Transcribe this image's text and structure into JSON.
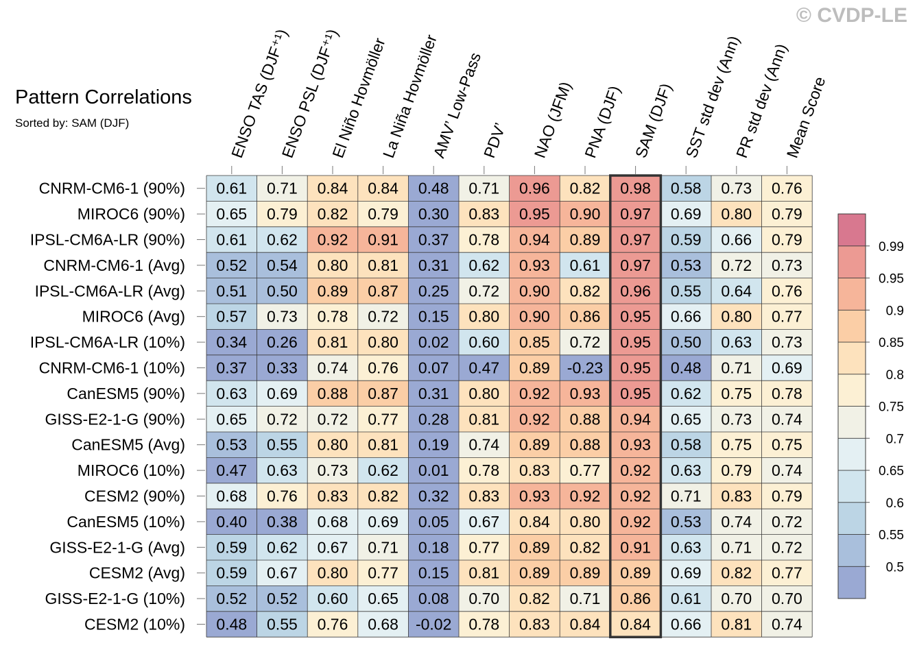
{
  "title": "Pattern Correlations",
  "subtitle": "Sorted by: SAM (DJF)",
  "watermark": "© CVDP-LE",
  "chart_data": {
    "type": "heatmap",
    "columns": [
      "ENSO TAS (DJF⁺¹)",
      "ENSO PSL (DJF⁺¹)",
      "El Niño Hovmöller",
      "La Niña Hovmöller",
      "AMV’ Low-Pass",
      "PDV’",
      "NAO (JFM)",
      "PNA (DJF)",
      "SAM (DJF)",
      "SST std dev (Ann)",
      "PR std dev (Ann)",
      "Mean Score"
    ],
    "rows": [
      "CNRM-CM6-1 (90%)",
      "MIROC6 (90%)",
      "IPSL-CM6A-LR (90%)",
      "CNRM-CM6-1 (Avg)",
      "IPSL-CM6A-LR (Avg)",
      "MIROC6 (Avg)",
      "IPSL-CM6A-LR (10%)",
      "CNRM-CM6-1 (10%)",
      "CanESM5 (90%)",
      "GISS-E2-1-G (90%)",
      "CanESM5 (Avg)",
      "MIROC6 (10%)",
      "CESM2 (90%)",
      "CanESM5 (10%)",
      "GISS-E2-1-G (Avg)",
      "CESM2 (Avg)",
      "GISS-E2-1-G (10%)",
      "CESM2 (10%)"
    ],
    "values": [
      [
        "0.61",
        "0.71",
        "0.84",
        "0.84",
        "0.48",
        "0.71",
        "0.96",
        "0.82",
        "0.98",
        "0.58",
        "0.73",
        "0.76"
      ],
      [
        "0.65",
        "0.79",
        "0.82",
        "0.79",
        "0.30",
        "0.83",
        "0.95",
        "0.90",
        "0.97",
        "0.69",
        "0.80",
        "0.79"
      ],
      [
        "0.61",
        "0.62",
        "0.92",
        "0.91",
        "0.37",
        "0.78",
        "0.94",
        "0.89",
        "0.97",
        "0.59",
        "0.66",
        "0.79"
      ],
      [
        "0.52",
        "0.54",
        "0.80",
        "0.81",
        "0.31",
        "0.62",
        "0.93",
        "0.61",
        "0.97",
        "0.53",
        "0.72",
        "0.73"
      ],
      [
        "0.51",
        "0.50",
        "0.89",
        "0.87",
        "0.25",
        "0.72",
        "0.90",
        "0.82",
        "0.96",
        "0.55",
        "0.64",
        "0.76"
      ],
      [
        "0.57",
        "0.73",
        "0.78",
        "0.72",
        "0.15",
        "0.80",
        "0.90",
        "0.86",
        "0.95",
        "0.66",
        "0.80",
        "0.77"
      ],
      [
        "0.34",
        "0.26",
        "0.81",
        "0.80",
        "0.02",
        "0.60",
        "0.85",
        "0.72",
        "0.95",
        "0.50",
        "0.63",
        "0.73"
      ],
      [
        "0.37",
        "0.33",
        "0.74",
        "0.76",
        "0.07",
        "0.47",
        "0.89",
        "-0.23",
        "0.95",
        "0.48",
        "0.71",
        "0.69"
      ],
      [
        "0.63",
        "0.69",
        "0.88",
        "0.87",
        "0.31",
        "0.80",
        "0.92",
        "0.93",
        "0.95",
        "0.62",
        "0.75",
        "0.78"
      ],
      [
        "0.65",
        "0.72",
        "0.72",
        "0.77",
        "0.28",
        "0.81",
        "0.92",
        "0.88",
        "0.94",
        "0.65",
        "0.73",
        "0.74"
      ],
      [
        "0.53",
        "0.55",
        "0.80",
        "0.81",
        "0.19",
        "0.74",
        "0.89",
        "0.88",
        "0.93",
        "0.58",
        "0.75",
        "0.75"
      ],
      [
        "0.47",
        "0.63",
        "0.73",
        "0.62",
        "0.01",
        "0.78",
        "0.83",
        "0.77",
        "0.92",
        "0.63",
        "0.79",
        "0.74"
      ],
      [
        "0.68",
        "0.76",
        "0.83",
        "0.82",
        "0.32",
        "0.83",
        "0.93",
        "0.92",
        "0.92",
        "0.71",
        "0.83",
        "0.79"
      ],
      [
        "0.40",
        "0.38",
        "0.68",
        "0.69",
        "0.05",
        "0.67",
        "0.84",
        "0.80",
        "0.92",
        "0.53",
        "0.74",
        "0.72"
      ],
      [
        "0.59",
        "0.62",
        "0.67",
        "0.71",
        "0.18",
        "0.77",
        "0.89",
        "0.82",
        "0.91",
        "0.63",
        "0.71",
        "0.72"
      ],
      [
        "0.59",
        "0.67",
        "0.80",
        "0.77",
        "0.15",
        "0.81",
        "0.89",
        "0.89",
        "0.89",
        "0.69",
        "0.82",
        "0.77"
      ],
      [
        "0.52",
        "0.52",
        "0.60",
        "0.65",
        "0.08",
        "0.70",
        "0.82",
        "0.71",
        "0.86",
        "0.61",
        "0.70",
        "0.70"
      ],
      [
        "0.48",
        "0.55",
        "0.76",
        "0.68",
        "-0.02",
        "0.78",
        "0.83",
        "0.84",
        "0.84",
        "0.66",
        "0.81",
        "0.74"
      ]
    ],
    "highlight_column": "SAM (DJF)",
    "colorbar": {
      "levels": [
        "0.5",
        "0.55",
        "0.6",
        "0.65",
        "0.7",
        "0.75",
        "0.8",
        "0.85",
        "0.9",
        "0.95",
        "0.99"
      ],
      "colors": [
        "#9aa9d3",
        "#a9bfdc",
        "#bcd5e5",
        "#d1e5ee",
        "#e4f0f3",
        "#f1f1e6",
        "#fcf0d4",
        "#fde2bd",
        "#fbcea6",
        "#f6b59a",
        "#ec9a93",
        "#d8788f"
      ]
    }
  }
}
